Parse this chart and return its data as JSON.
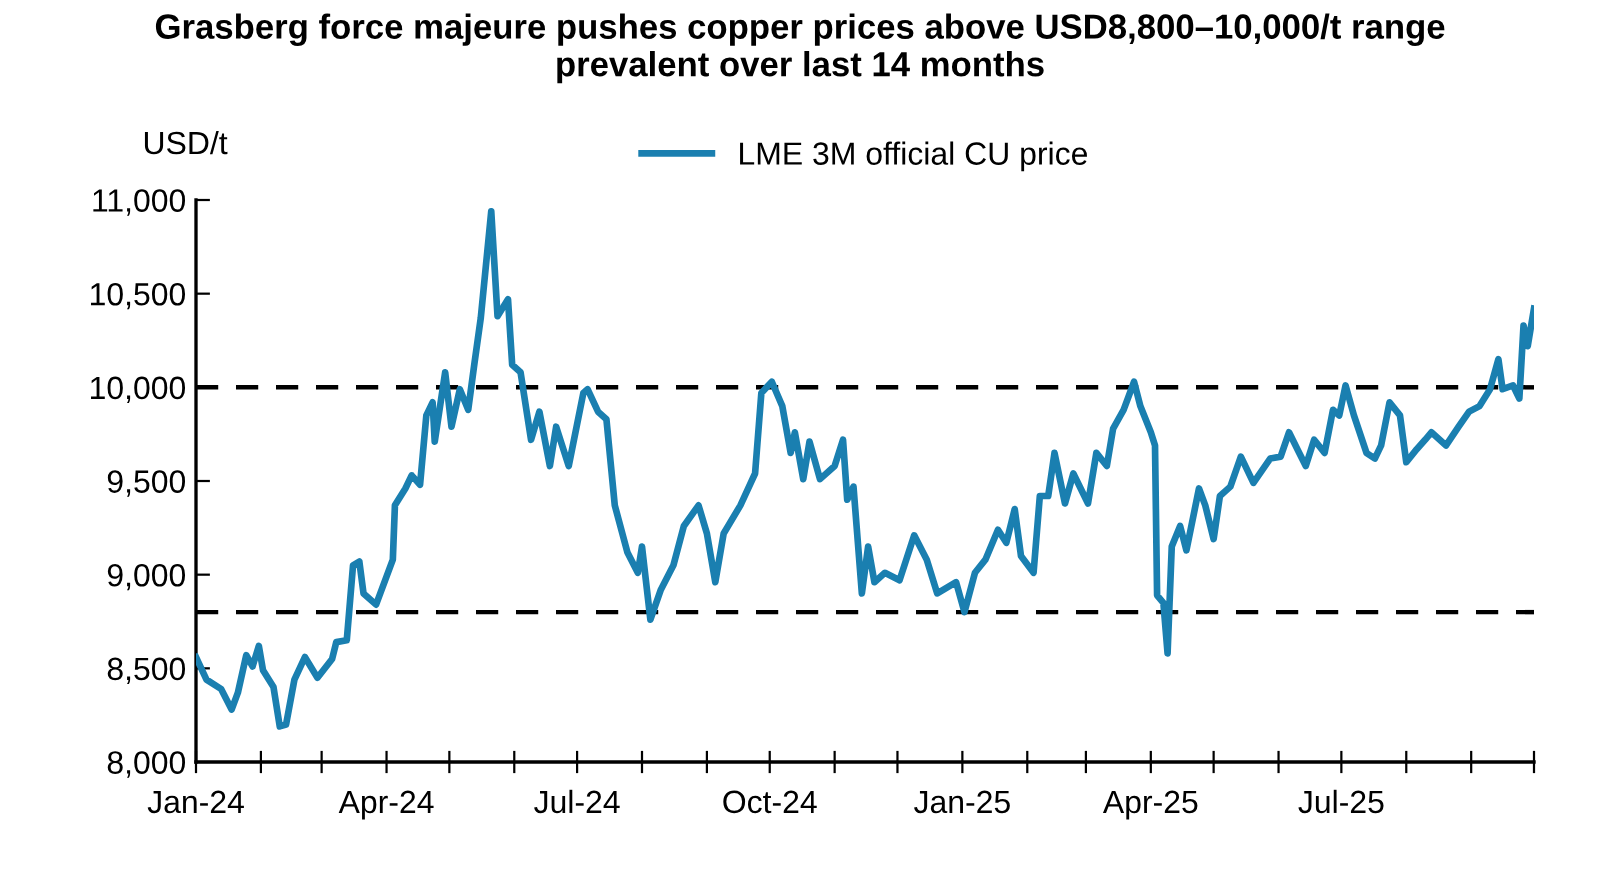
{
  "chart_data": {
    "type": "line",
    "title": "Grasberg force majeure pushes copper prices above USD8,800–10,000/t range\nprevalent over last 14 months",
    "ylabel": "USD/t",
    "x": [
      "2024-01-01",
      "2024-01-06",
      "2024-01-13",
      "2024-01-18",
      "2024-01-21",
      "2024-01-25",
      "2024-01-28",
      "2024-01-31",
      "2024-02-02",
      "2024-02-07",
      "2024-02-10",
      "2024-02-13",
      "2024-02-17",
      "2024-02-22",
      "2024-02-28",
      "2024-03-06",
      "2024-03-08",
      "2024-03-13",
      "2024-03-16",
      "2024-03-19",
      "2024-03-21",
      "2024-03-27",
      "2024-04-04",
      "2024-04-05",
      "2024-04-10",
      "2024-04-13",
      "2024-04-17",
      "2024-04-20",
      "2024-04-23",
      "2024-04-24",
      "2024-04-29",
      "2024-05-02",
      "2024-05-06",
      "2024-05-10",
      "2024-05-13",
      "2024-05-16",
      "2024-05-21",
      "2024-05-24",
      "2024-05-29",
      "2024-05-31",
      "2024-06-04",
      "2024-06-09",
      "2024-06-13",
      "2024-06-18",
      "2024-06-21",
      "2024-06-27",
      "2024-07-04",
      "2024-07-06",
      "2024-07-11",
      "2024-07-15",
      "2024-07-19",
      "2024-07-25",
      "2024-07-30",
      "2024-08-01",
      "2024-08-05",
      "2024-08-10",
      "2024-08-16",
      "2024-08-21",
      "2024-08-28",
      "2024-09-01",
      "2024-09-05",
      "2024-09-09",
      "2024-09-17",
      "2024-09-24",
      "2024-09-27",
      "2024-10-02",
      "2024-10-07",
      "2024-10-11",
      "2024-10-13",
      "2024-10-17",
      "2024-10-20",
      "2024-10-25",
      "2024-11-01",
      "2024-11-05",
      "2024-11-07",
      "2024-11-10",
      "2024-11-14",
      "2024-11-17",
      "2024-11-20",
      "2024-11-25",
      "2024-12-02",
      "2024-12-09",
      "2024-12-15",
      "2024-12-20",
      "2024-12-29",
      "2025-01-02",
      "2025-01-07",
      "2025-01-12",
      "2025-01-18",
      "2025-01-22",
      "2025-01-26",
      "2025-01-29",
      "2025-02-04",
      "2025-02-07",
      "2025-02-11",
      "2025-02-14",
      "2025-02-19",
      "2025-02-23",
      "2025-03-02",
      "2025-03-06",
      "2025-03-11",
      "2025-03-14",
      "2025-03-19",
      "2025-03-24",
      "2025-03-27",
      "2025-04-01",
      "2025-04-03",
      "2025-04-04",
      "2025-04-07",
      "2025-04-09",
      "2025-04-11",
      "2025-04-15",
      "2025-04-18",
      "2025-04-24",
      "2025-04-27",
      "2025-05-01",
      "2025-05-04",
      "2025-05-09",
      "2025-05-14",
      "2025-05-20",
      "2025-05-28",
      "2025-06-02",
      "2025-06-06",
      "2025-06-10",
      "2025-06-14",
      "2025-06-18",
      "2025-06-23",
      "2025-06-27",
      "2025-06-30",
      "2025-07-03",
      "2025-07-07",
      "2025-07-13",
      "2025-07-17",
      "2025-07-20",
      "2025-07-24",
      "2025-07-29",
      "2025-08-01",
      "2025-08-06",
      "2025-08-10",
      "2025-08-13",
      "2025-08-20",
      "2025-08-26",
      "2025-08-31",
      "2025-09-05",
      "2025-09-10",
      "2025-09-14",
      "2025-09-16",
      "2025-09-21",
      "2025-09-24",
      "2025-09-26",
      "2025-09-28",
      "2025-10-01"
    ],
    "series": [
      {
        "name": "LME 3M official CU price",
        "color": "#1a7fb0",
        "values": [
          8560,
          8440,
          8390,
          8280,
          8370,
          8570,
          8510,
          8620,
          8490,
          8400,
          8190,
          8200,
          8440,
          8560,
          8450,
          8550,
          8640,
          8650,
          9050,
          9070,
          8900,
          8840,
          9080,
          9370,
          9460,
          9530,
          9480,
          9850,
          9920,
          9710,
          10080,
          9790,
          9990,
          9880,
          10130,
          10370,
          10940,
          10380,
          10470,
          10120,
          10080,
          9720,
          9870,
          9580,
          9790,
          9580,
          9970,
          9990,
          9870,
          9830,
          9370,
          9120,
          9010,
          9150,
          8760,
          8920,
          9050,
          9260,
          9370,
          9220,
          8960,
          9220,
          9370,
          9540,
          9970,
          10030,
          9900,
          9650,
          9760,
          9510,
          9710,
          9510,
          9580,
          9720,
          9400,
          9470,
          8900,
          9150,
          8960,
          9010,
          8970,
          9210,
          9080,
          8900,
          8960,
          8800,
          9010,
          9080,
          9240,
          9170,
          9350,
          9100,
          9010,
          9420,
          9420,
          9650,
          9380,
          9540,
          9380,
          9650,
          9580,
          9780,
          9880,
          10030,
          9900,
          9760,
          9690,
          8890,
          8850,
          8580,
          9150,
          9260,
          9130,
          9460,
          9370,
          9190,
          9420,
          9470,
          9630,
          9490,
          9620,
          9630,
          9760,
          9670,
          9580,
          9720,
          9650,
          9880,
          9850,
          10010,
          9850,
          9650,
          9620,
          9690,
          9920,
          9850,
          9600,
          9670,
          9720,
          9760,
          9690,
          9790,
          9870,
          9900,
          9990,
          10150,
          9990,
          10010,
          9940,
          10330,
          10220,
          10420
        ]
      }
    ],
    "xlim": [
      "2024-01-01",
      "2025-10-01"
    ],
    "xticks": [
      {
        "value": "2024-01-01",
        "label": "Jan-24"
      },
      {
        "value": "2024-02-01",
        "label": null
      },
      {
        "value": "2024-03-01",
        "label": null
      },
      {
        "value": "2024-04-01",
        "label": "Apr-24"
      },
      {
        "value": "2024-05-01",
        "label": null
      },
      {
        "value": "2024-06-01",
        "label": null
      },
      {
        "value": "2024-07-01",
        "label": "Jul-24"
      },
      {
        "value": "2024-08-01",
        "label": null
      },
      {
        "value": "2024-09-01",
        "label": null
      },
      {
        "value": "2024-10-01",
        "label": "Oct-24"
      },
      {
        "value": "2024-11-01",
        "label": null
      },
      {
        "value": "2024-12-01",
        "label": null
      },
      {
        "value": "2025-01-01",
        "label": "Jan-25"
      },
      {
        "value": "2025-02-01",
        "label": null
      },
      {
        "value": "2025-03-01",
        "label": null
      },
      {
        "value": "2025-04-01",
        "label": "Apr-25"
      },
      {
        "value": "2025-05-01",
        "label": null
      },
      {
        "value": "2025-06-01",
        "label": null
      },
      {
        "value": "2025-07-01",
        "label": "Jul-25"
      },
      {
        "value": "2025-08-01",
        "label": null
      },
      {
        "value": "2025-09-01",
        "label": null
      },
      {
        "value": "2025-10-01",
        "label": null
      }
    ],
    "ylim": [
      8000,
      11000
    ],
    "yticks": [
      {
        "value": 8000,
        "label": "8,000"
      },
      {
        "value": 8500,
        "label": "8,500"
      },
      {
        "value": 9000,
        "label": "9,000"
      },
      {
        "value": 9500,
        "label": "9,500"
      },
      {
        "value": 10000,
        "label": "10,000"
      },
      {
        "value": 10500,
        "label": "10,500"
      },
      {
        "value": 11000,
        "label": "11,000"
      }
    ],
    "ref_lines": [
      {
        "axis": "y",
        "value": 10000,
        "color": "#000000",
        "line_style": "dashed"
      },
      {
        "axis": "y",
        "value": 8800,
        "color": "#000000",
        "line_style": "dashed"
      }
    ],
    "grid": false,
    "legend": "top",
    "marker": "none",
    "line_style": "solid"
  }
}
